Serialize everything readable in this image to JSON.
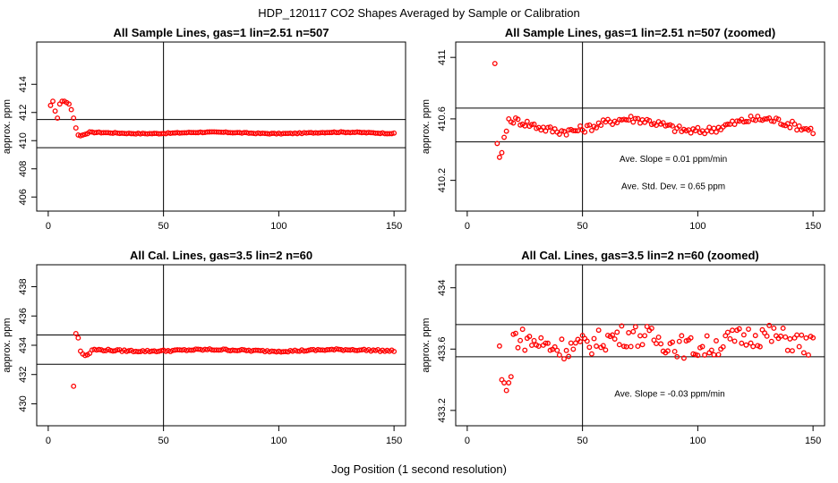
{
  "page": {
    "title": "HDP_120117  CO2 Shapes Averaged by Sample or Calibration",
    "xlabel": "Jog Position (1 second resolution)"
  },
  "colors": {
    "points": "#ff0000",
    "lines": "#000000"
  },
  "chart_data": [
    {
      "type": "scatter",
      "title": "All Sample Lines, gas=1 lin=2.51 n=507",
      "ylabel": "approx. ppm",
      "xlim": [
        -5,
        155
      ],
      "ylim": [
        405,
        417
      ],
      "xticks": [
        0,
        50,
        100,
        150
      ],
      "yticks": [
        406,
        408,
        410,
        412,
        414
      ],
      "vline": 50,
      "hlines": [
        411.5,
        409.5
      ],
      "annotations": [],
      "pattern": "sample",
      "series": [
        {
          "x_start": 1,
          "x_end": 150,
          "lead": [
            412.5,
            412.8,
            412.1,
            411.6,
            412.6,
            412.8,
            412.8,
            412.7,
            412.6,
            412.2,
            411.6,
            410.9,
            410.4,
            410.35,
            410.4,
            410.45,
            410.5
          ],
          "base": 410.55,
          "amp": 0.05,
          "noise": 0.03
        }
      ]
    },
    {
      "type": "scatter",
      "title": "All Sample Lines, gas=1 lin=2.51 n=507 (zoomed)",
      "ylabel": "approx. ppm",
      "xlim": [
        -5,
        155
      ],
      "ylim": [
        410.0,
        411.1
      ],
      "xticks": [
        0,
        50,
        100,
        150
      ],
      "yticks": [
        410.2,
        410.6,
        411.0
      ],
      "vline": 50,
      "hlines": [
        410.67,
        410.45
      ],
      "annotations": [
        "Ave. Slope =  0.01  ppm/min",
        "Ave. Std. Dev. =  0.65  ppm"
      ],
      "pattern": "sample_zoom",
      "series": [
        {
          "x_start": 12,
          "x_end": 150,
          "lead": [
            410.96,
            410.44,
            410.35,
            410.38,
            410.48,
            410.52,
            410.6,
            410.58
          ],
          "base": 410.56,
          "amp": 0.04,
          "noise": 0.025
        }
      ]
    },
    {
      "type": "scatter",
      "title": "All Cal. Lines, gas=3.5 lin=2 n=60",
      "ylabel": "approx. ppm",
      "xlim": [
        -5,
        155
      ],
      "ylim": [
        428.5,
        439.5
      ],
      "xticks": [
        0,
        50,
        100,
        150
      ],
      "yticks": [
        430,
        432,
        434,
        436,
        438
      ],
      "vline": 50,
      "hlines": [
        434.7,
        432.7
      ],
      "annotations": [],
      "pattern": "cal",
      "series": [
        {
          "x_start": 11,
          "x_end": 150,
          "lead": [
            431.2,
            434.8,
            434.5,
            433.6,
            433.4,
            433.3,
            433.35,
            433.45
          ],
          "base": 433.65,
          "amp": 0.05,
          "noise": 0.06
        }
      ]
    },
    {
      "type": "scatter",
      "title": "All Cal. Lines, gas=3.5 lin=2 n=60 (zoomed)",
      "ylabel": "approx. ppm",
      "xlim": [
        -5,
        155
      ],
      "ylim": [
        433.1,
        434.15
      ],
      "xticks": [
        0,
        50,
        100,
        150
      ],
      "yticks": [
        433.2,
        433.6,
        434.0
      ],
      "vline": 50,
      "hlines": [
        433.76,
        433.55
      ],
      "annotations": [
        "Ave. Slope =  -0.03  ppm/min"
      ],
      "pattern": "cal_zoom",
      "series": [
        {
          "x_start": 14,
          "x_end": 150,
          "lead": [
            433.62,
            433.4,
            433.38,
            433.33,
            433.38,
            433.42
          ],
          "base": 433.65,
          "amp": 0.04,
          "noise": 0.075
        }
      ]
    }
  ]
}
